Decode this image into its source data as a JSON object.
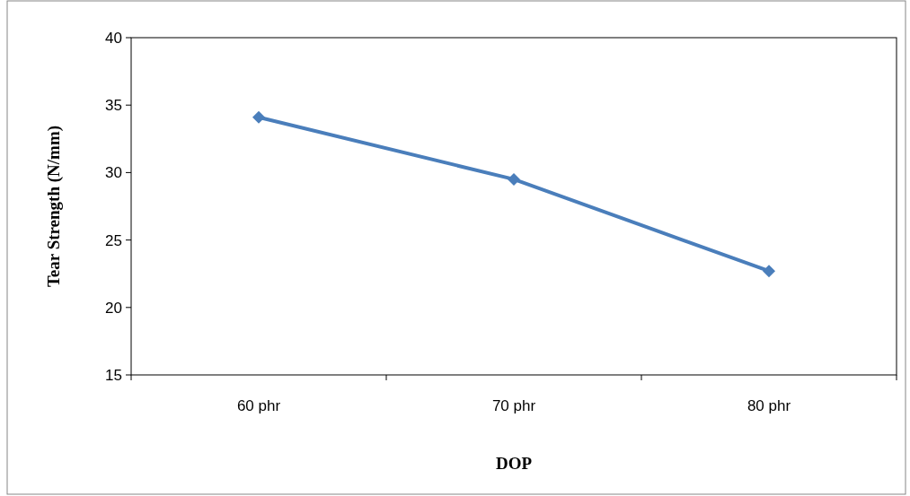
{
  "chart_data": {
    "type": "line",
    "xlabel": "DOP",
    "ylabel": "Tear Strength (N/mm)",
    "categories": [
      "60 phr",
      "70 phr",
      "80 phr"
    ],
    "series": [
      {
        "color": "#4a7ebb",
        "values": [
          34.1,
          29.5,
          22.7
        ]
      }
    ],
    "ylim": [
      15,
      40
    ],
    "yticks": [
      15,
      20,
      25,
      30,
      35,
      40
    ],
    "marker": "diamond",
    "line_style": "solid"
  }
}
